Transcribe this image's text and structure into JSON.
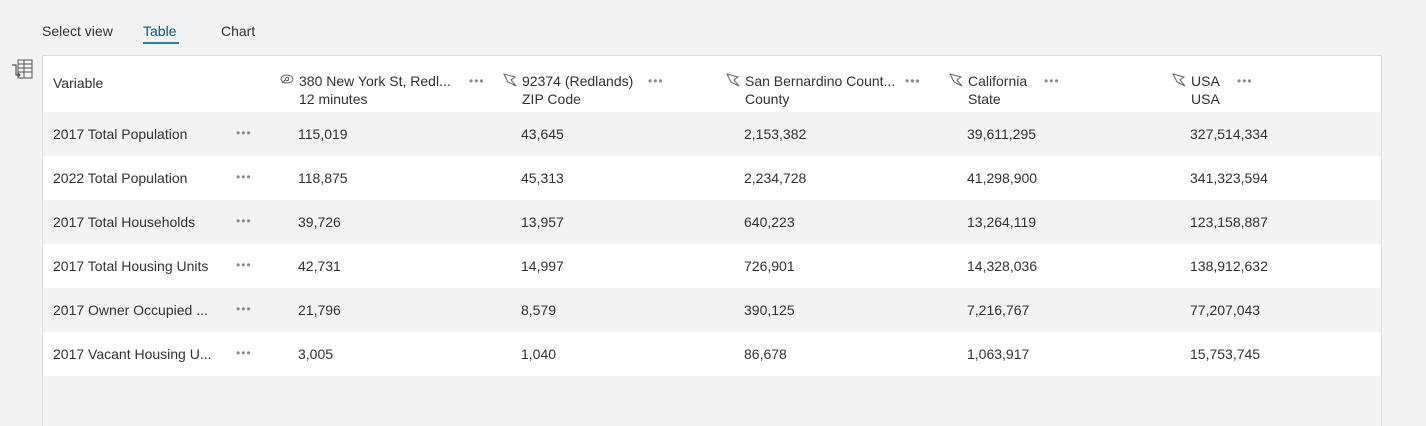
{
  "view_tabs": [
    {
      "label": "Select view"
    },
    {
      "label": "Table"
    },
    {
      "label": "Chart"
    }
  ],
  "active_tab": "Table",
  "colors": {
    "accent": "#2f7bbf",
    "active_tab_text": "#0a5a8c"
  },
  "table": {
    "variable_header": "Variable",
    "columns": [
      {
        "title": "380 New York St, Redl...",
        "subtitle": "12 minutes",
        "icon": "drive-time-icon"
      },
      {
        "title": "92374 (Redlands)",
        "subtitle": "ZIP Code",
        "icon": "polygon-area-icon"
      },
      {
        "title": "San Bernardino Count...",
        "subtitle": "County",
        "icon": "polygon-area-icon"
      },
      {
        "title": "California",
        "subtitle": "State",
        "icon": "polygon-area-icon"
      },
      {
        "title": "USA",
        "subtitle": "USA",
        "icon": "polygon-area-icon"
      }
    ],
    "more_glyph": "•••",
    "rows": [
      {
        "variable": "2017 Total Population",
        "values": [
          "115,019",
          "43,645",
          "2,153,382",
          "39,611,295",
          "327,514,334"
        ]
      },
      {
        "variable": "2022 Total Population",
        "values": [
          "118,875",
          "45,313",
          "2,234,728",
          "41,298,900",
          "341,323,594"
        ]
      },
      {
        "variable": "2017 Total Households",
        "values": [
          "39,726",
          "13,957",
          "640,223",
          "13,264,119",
          "123,158,887"
        ]
      },
      {
        "variable": "2017 Total Housing Units",
        "values": [
          "42,731",
          "14,997",
          "726,901",
          "14,328,036",
          "138,912,632"
        ]
      },
      {
        "variable": "2017 Owner Occupied ...",
        "values": [
          "21,796",
          "8,579",
          "390,125",
          "7,216,767",
          "77,207,043"
        ]
      },
      {
        "variable": "2017 Vacant Housing U...",
        "values": [
          "3,005",
          "1,040",
          "86,678",
          "1,063,917",
          "15,753,745"
        ]
      }
    ]
  }
}
